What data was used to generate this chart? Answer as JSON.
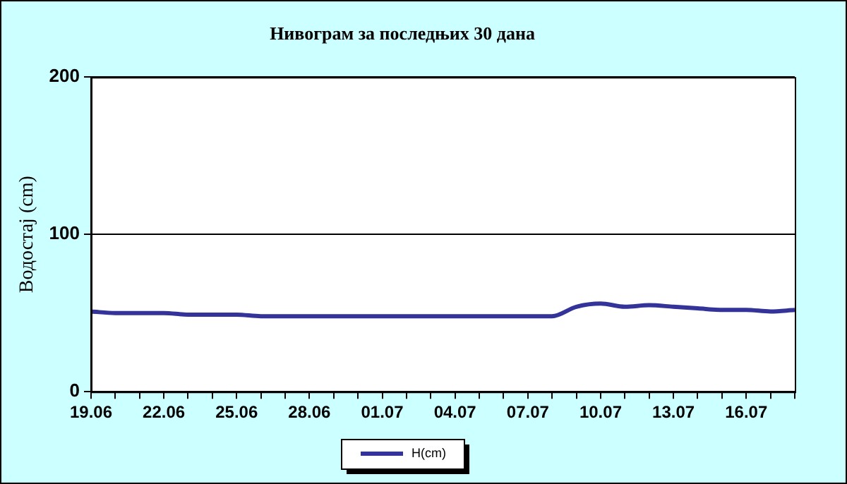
{
  "chart_data": {
    "type": "line",
    "title": "Нивограм за последњих 30 дана",
    "ylabel": "Водостај (cm)",
    "categories": [
      "19.06",
      null,
      null,
      "22.06",
      null,
      null,
      "25.06",
      null,
      null,
      "28.06",
      null,
      null,
      "01.07",
      null,
      null,
      "04.07",
      null,
      null,
      "07.07",
      null,
      null,
      "10.07",
      null,
      null,
      "13.07",
      null,
      null,
      "16.07",
      null,
      null
    ],
    "series": [
      {
        "name": "H(cm)",
        "color": "#333399",
        "values": [
          51,
          50,
          50,
          50,
          49,
          49,
          49,
          48,
          48,
          48,
          48,
          48,
          48,
          48,
          48,
          48,
          48,
          48,
          48,
          48,
          54,
          56,
          54,
          55,
          54,
          53,
          52,
          52,
          51,
          52
        ]
      }
    ],
    "ylim": [
      0,
      200
    ],
    "yticks": [
      0,
      100,
      200
    ],
    "grid": "y",
    "legend": "bottom",
    "marker": "none",
    "line_style": "solid"
  }
}
